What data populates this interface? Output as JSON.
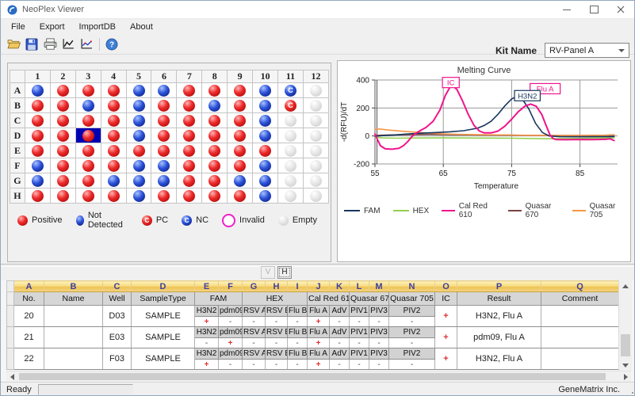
{
  "window": {
    "title": "NeoPlex Viewer"
  },
  "menu": {
    "items": [
      "File",
      "Export",
      "ImportDB",
      "About"
    ]
  },
  "toolbar": {
    "help_glyph": "?"
  },
  "kit": {
    "label": "Kit Name",
    "value": "RV-Panel A"
  },
  "plate": {
    "col_headers": [
      "1",
      "2",
      "3",
      "4",
      "5",
      "6",
      "7",
      "8",
      "9",
      "10",
      "11",
      "12"
    ],
    "row_headers": [
      "A",
      "B",
      "C",
      "D",
      "E",
      "F",
      "G",
      "H"
    ],
    "control_glyph": "C",
    "selected_well": "D3",
    "wells": [
      [
        "N",
        "P",
        "P",
        "P",
        "N",
        "N",
        "P",
        "P",
        "P",
        "N",
        "NC",
        "E"
      ],
      [
        "P",
        "P",
        "N",
        "P",
        "N",
        "P",
        "P",
        "N",
        "P",
        "N",
        "PC",
        "E"
      ],
      [
        "P",
        "P",
        "P",
        "P",
        "N",
        "P",
        "P",
        "P",
        "P",
        "N",
        "E",
        "E"
      ],
      [
        "P",
        "P",
        "P",
        "P",
        "N",
        "P",
        "P",
        "P",
        "P",
        "N",
        "E",
        "E"
      ],
      [
        "P",
        "P",
        "P",
        "P",
        "P",
        "P",
        "P",
        "P",
        "P",
        "P",
        "E",
        "E"
      ],
      [
        "N",
        "P",
        "P",
        "P",
        "N",
        "N",
        "P",
        "P",
        "P",
        "N",
        "E",
        "E"
      ],
      [
        "N",
        "P",
        "P",
        "N",
        "N",
        "N",
        "P",
        "P",
        "N",
        "N",
        "E",
        "E"
      ],
      [
        "P",
        "P",
        "P",
        "P",
        "N",
        "P",
        "P",
        "P",
        "P",
        "N",
        "E",
        "E"
      ]
    ],
    "legend": [
      {
        "type": "P",
        "label": "Positive"
      },
      {
        "type": "N",
        "label": "Not Detected"
      },
      {
        "type": "PC",
        "label": "PC"
      },
      {
        "type": "NC",
        "label": "NC"
      },
      {
        "type": "INV",
        "label": "Invalid"
      },
      {
        "type": "E",
        "label": "Empty"
      }
    ]
  },
  "chart_data": {
    "type": "line",
    "title": "Melting Curve",
    "xlabel": "Temperature",
    "ylabel": "-d(RFU)/dT",
    "xlim": [
      55,
      90.5
    ],
    "ylim": [
      -200,
      400
    ],
    "xticks": [
      55,
      65,
      75,
      85
    ],
    "yticks": [
      -200,
      0,
      200,
      400
    ],
    "grid": true,
    "legend_position": "bottom",
    "series": [
      {
        "name": "FAM",
        "color": "#17365d",
        "points": [
          [
            55,
            -2
          ],
          [
            56,
            2
          ],
          [
            58,
            8
          ],
          [
            60,
            15
          ],
          [
            62,
            20
          ],
          [
            64,
            25
          ],
          [
            66,
            30
          ],
          [
            68,
            38
          ],
          [
            70,
            55
          ],
          [
            71,
            75
          ],
          [
            72,
            105
          ],
          [
            73,
            155
          ],
          [
            74,
            215
          ],
          [
            75,
            265
          ],
          [
            75.8,
            283
          ],
          [
            76.5,
            268
          ],
          [
            77.5,
            195
          ],
          [
            78.5,
            90
          ],
          [
            79.5,
            25
          ],
          [
            80.5,
            0
          ],
          [
            82,
            -5
          ],
          [
            84,
            -6
          ],
          [
            86,
            -6
          ],
          [
            88,
            -5
          ],
          [
            90,
            -4
          ]
        ]
      },
      {
        "name": "HEX",
        "color": "#92d050",
        "points": [
          [
            55,
            -8
          ],
          [
            56,
            -14
          ],
          [
            58,
            -16
          ],
          [
            60,
            -15
          ],
          [
            65,
            -14
          ],
          [
            70,
            -15
          ],
          [
            75,
            -16
          ],
          [
            80,
            -20
          ],
          [
            85,
            -18
          ],
          [
            90,
            -14
          ]
        ]
      },
      {
        "name": "Cal Red 610",
        "color": "#f0148c",
        "points": [
          [
            55,
            15
          ],
          [
            55.3,
            -20
          ],
          [
            55.8,
            -70
          ],
          [
            56.5,
            -92
          ],
          [
            57.5,
            -95
          ],
          [
            58.5,
            -88
          ],
          [
            59.2,
            -68
          ],
          [
            59.8,
            -40
          ],
          [
            60.3,
            -10
          ],
          [
            60.8,
            12
          ],
          [
            61.5,
            35
          ],
          [
            62.5,
            62
          ],
          [
            63.5,
            105
          ],
          [
            64.5,
            185
          ],
          [
            65.3,
            290
          ],
          [
            66,
            350
          ],
          [
            66.4,
            358
          ],
          [
            67,
            332
          ],
          [
            67.8,
            252
          ],
          [
            68.6,
            160
          ],
          [
            69.5,
            75
          ],
          [
            70.3,
            35
          ],
          [
            71,
            22
          ],
          [
            72,
            22
          ],
          [
            73,
            35
          ],
          [
            74,
            70
          ],
          [
            75,
            120
          ],
          [
            76,
            175
          ],
          [
            77,
            215
          ],
          [
            77.8,
            228
          ],
          [
            78.6,
            212
          ],
          [
            79.4,
            155
          ],
          [
            80,
            80
          ],
          [
            80.6,
            8
          ],
          [
            81.1,
            -20
          ],
          [
            81.6,
            -26
          ],
          [
            83,
            -27
          ],
          [
            85,
            -25
          ],
          [
            87,
            -26
          ],
          [
            88.8,
            -24
          ],
          [
            89.4,
            -20
          ],
          [
            90,
            -33
          ]
        ]
      },
      {
        "name": "Quasar 670",
        "color": "#7a4141",
        "points": [
          [
            55,
            3
          ],
          [
            57,
            7
          ],
          [
            60,
            10
          ],
          [
            63,
            11
          ],
          [
            66,
            10
          ],
          [
            70,
            8
          ],
          [
            74,
            6
          ],
          [
            78,
            4
          ],
          [
            82,
            3
          ],
          [
            86,
            3
          ],
          [
            90,
            6
          ]
        ]
      },
      {
        "name": "Quasar 705",
        "color": "#f79646",
        "points": [
          [
            55,
            46
          ],
          [
            55.6,
            50
          ],
          [
            57,
            42
          ],
          [
            59,
            34
          ],
          [
            61,
            27
          ],
          [
            63,
            20
          ],
          [
            65,
            15
          ],
          [
            67,
            12
          ],
          [
            69,
            10
          ],
          [
            71,
            9
          ],
          [
            73,
            8
          ],
          [
            75,
            7
          ],
          [
            77,
            5
          ],
          [
            79,
            4
          ],
          [
            81,
            3
          ],
          [
            84,
            3
          ],
          [
            87,
            4
          ],
          [
            89,
            6
          ],
          [
            90,
            9
          ]
        ]
      }
    ],
    "annotations": [
      {
        "text": "IC",
        "x": 66.1,
        "y": 382,
        "color": "#f0148c"
      },
      {
        "text": "Flu A",
        "x": 79.9,
        "y": 338,
        "color": "#f0148c"
      },
      {
        "text": "H3N2",
        "x": 77.3,
        "y": 288,
        "color": "#17365d"
      }
    ]
  },
  "view_buttons": {
    "v": "V",
    "h": "H"
  },
  "table": {
    "letters": [
      "A",
      "B",
      "C",
      "D",
      "E",
      "F",
      "G",
      "H",
      "I",
      "J",
      "K",
      "L",
      "M",
      "N",
      "O",
      "P",
      "Q"
    ],
    "headers": [
      {
        "label": "No.",
        "span": 1
      },
      {
        "label": "Name",
        "span": 1
      },
      {
        "label": "Well",
        "span": 1
      },
      {
        "label": "SampleType",
        "span": 1
      },
      {
        "label": "FAM",
        "span": 2
      },
      {
        "label": "HEX",
        "span": 3
      },
      {
        "label": "Cal Red 610",
        "span": 2
      },
      {
        "label": "Quasar 670",
        "span": 2
      },
      {
        "label": "Quasar 705",
        "span": 1
      },
      {
        "label": "IC",
        "span": 1
      },
      {
        "label": "Result",
        "span": 1
      },
      {
        "label": "Comment",
        "span": 1
      }
    ],
    "analytes": [
      "H3N2",
      "pdm09",
      "RSV A",
      "RSV B",
      "Flu B",
      "Flu A",
      "AdV",
      "PIV1",
      "PIV3",
      "PIV2"
    ],
    "rows": [
      {
        "no": "20",
        "name": "",
        "well": "D03",
        "sample_type": "SAMPLE",
        "values": [
          "+",
          "-",
          "-",
          "-",
          "-",
          "+",
          "-",
          "-",
          "-",
          "-"
        ],
        "ic": "+",
        "result": "H3N2, Flu A",
        "comment": ""
      },
      {
        "no": "21",
        "name": "",
        "well": "E03",
        "sample_type": "SAMPLE",
        "values": [
          "-",
          "+",
          "-",
          "-",
          "-",
          "+",
          "-",
          "-",
          "-",
          "-"
        ],
        "ic": "+",
        "result": "pdm09, Flu A",
        "comment": ""
      },
      {
        "no": "22",
        "name": "",
        "well": "F03",
        "sample_type": "SAMPLE",
        "values": [
          "+",
          "-",
          "-",
          "-",
          "-",
          "+",
          "-",
          "-",
          "-",
          "-"
        ],
        "ic": "+",
        "result": "H3N2, Flu A",
        "comment": ""
      }
    ]
  },
  "status": {
    "left": "Ready",
    "right": "GeneMatrix Inc."
  },
  "colors": {
    "positive": "#d42020",
    "not_detected": "#1e3fbe",
    "empty": "#d8d8d8",
    "invalid_ring": "#f020c8",
    "selection": "#0000b4",
    "header_gold": "#f0c75f",
    "plus": "#e02f2f",
    "minus": "#555555"
  }
}
